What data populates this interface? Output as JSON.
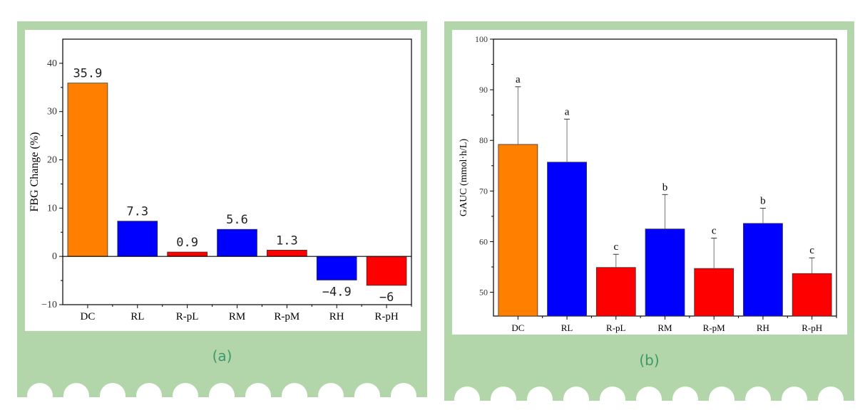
{
  "colors": {
    "panel_bg": "#b3d5aa",
    "caption": "#3a9a6a",
    "orange": "#ff8000",
    "blue": "#0000ff",
    "red": "#ff0000"
  },
  "chart_data": [
    {
      "type": "bar",
      "caption": "(a)",
      "ylabel": "FBG Change (%)",
      "xlabel": "",
      "ylim": [
        -10,
        45
      ],
      "yticks": [
        -10,
        0,
        10,
        20,
        30,
        40
      ],
      "categories": [
        "DC",
        "RL",
        "R-pL",
        "RM",
        "R-pM",
        "RH",
        "R-pH"
      ],
      "values": [
        35.9,
        7.3,
        0.9,
        5.6,
        1.3,
        -4.9,
        -6
      ],
      "data_labels": [
        "35.9",
        "7.3",
        "0.9",
        "5.6",
        "1.3",
        "-4.9",
        "-6"
      ],
      "bar_colors": [
        "#ff8000",
        "#0000ff",
        "#ff0000",
        "#0000ff",
        "#ff0000",
        "#0000ff",
        "#ff0000"
      ]
    },
    {
      "type": "bar",
      "caption": "(b)",
      "ylabel": "GAUC (mmol·h/L)",
      "xlabel": "",
      "ylim": [
        45.3,
        100
      ],
      "yticks": [
        50,
        60,
        70,
        80,
        90,
        100
      ],
      "categories": [
        "DC",
        "RL",
        "R-pL",
        "RM",
        "R-pM",
        "RH",
        "R-pH"
      ],
      "values": [
        79.2,
        75.7,
        54.9,
        62.5,
        54.7,
        63.6,
        53.7
      ],
      "error_upper": [
        90.6,
        84.2,
        57.5,
        69.3,
        60.7,
        66.6,
        56.8
      ],
      "significance": [
        "a",
        "a",
        "c",
        "b",
        "c",
        "b",
        "c"
      ],
      "bar_colors": [
        "#ff8000",
        "#0000ff",
        "#ff0000",
        "#0000ff",
        "#ff0000",
        "#0000ff",
        "#ff0000"
      ]
    }
  ]
}
